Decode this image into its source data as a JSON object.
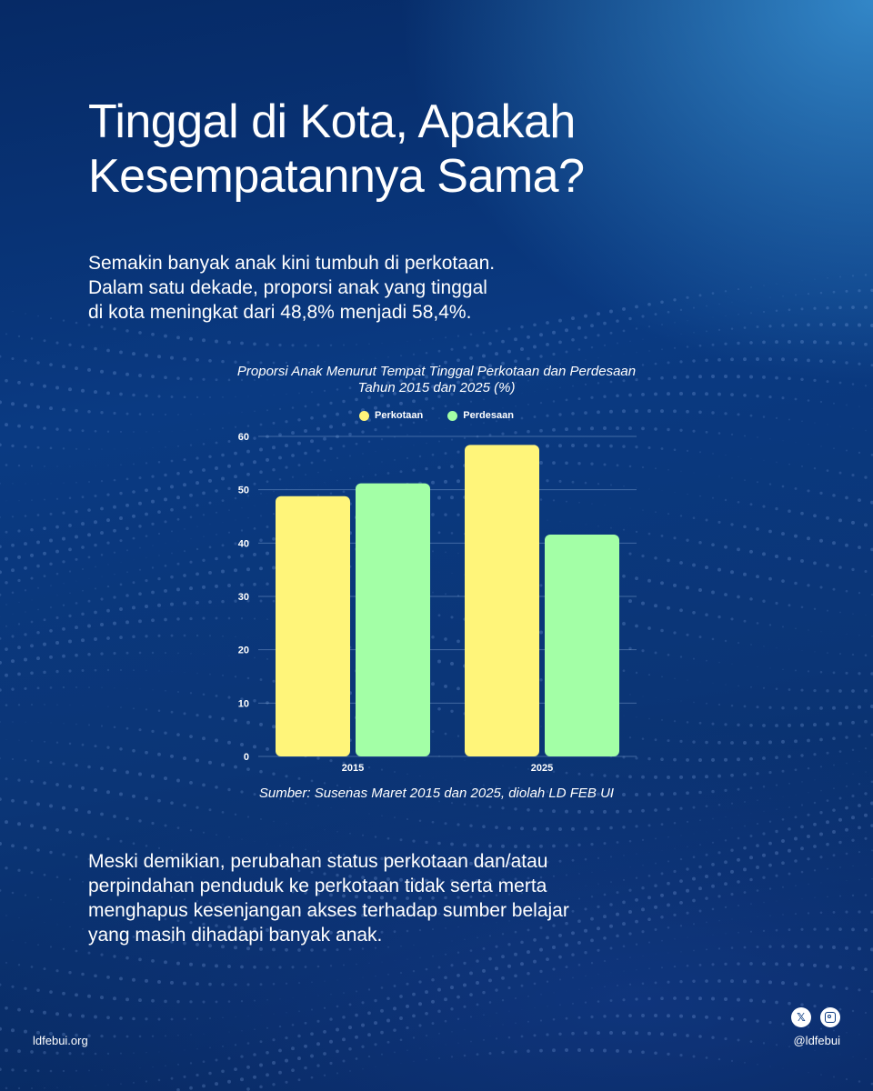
{
  "title": {
    "line1": "Tinggal di Kota, Apakah",
    "line2": "Kesempatannya Sama?"
  },
  "intro": {
    "line1": "Semakin banyak anak kini tumbuh di perkotaan.",
    "line2": "Dalam satu dekade, proporsi anak yang tinggal",
    "line3": "di kota meningkat dari 48,8% menjadi 58,4%."
  },
  "chart_data": {
    "type": "bar",
    "title_line1": "Proporsi Anak Menurut Tempat Tinggal Perkotaan dan Perdesaan",
    "title_line2": "Tahun 2015 dan 2025 (%)",
    "categories": [
      "2015",
      "2025"
    ],
    "series": [
      {
        "name": "Perkotaan",
        "values": [
          48.8,
          58.4
        ],
        "color": "#fff57a"
      },
      {
        "name": "Perdesaan",
        "values": [
          51.2,
          41.6
        ],
        "color": "#a3ffa6"
      }
    ],
    "ylim": [
      0,
      60
    ],
    "yticks": [
      0,
      10,
      20,
      30,
      40,
      50,
      60
    ],
    "grid": true,
    "legend_position": "top-center",
    "xlabel": "",
    "ylabel": ""
  },
  "source": "Sumber: Susenas Maret 2015 dan 2025, diolah LD FEB UI",
  "closing": {
    "line1": "Meski demikian, perubahan status perkotaan dan/atau",
    "line2": "perpindahan penduduk ke perkotaan tidak serta merta",
    "line3": "menghapus kesenjangan akses terhadap sumber belajar",
    "line4": "yang masih dihadapi banyak anak."
  },
  "footer": {
    "website": "ldfebui.org",
    "handle": "@ldfebui",
    "icons": [
      "x-icon",
      "instagram-icon"
    ]
  }
}
